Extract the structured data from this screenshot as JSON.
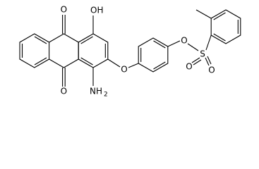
{
  "atoms": [
    {
      "label": "O"
    },
    {
      "label": "OH"
    },
    {
      "label": "O"
    },
    {
      "label": "NH",
      "subscript": "2"
    },
    {
      "label": "O"
    },
    {
      "label": "O"
    },
    {
      "label": "S"
    },
    {
      "label": "O"
    },
    {
      "label": "O"
    }
  ]
}
